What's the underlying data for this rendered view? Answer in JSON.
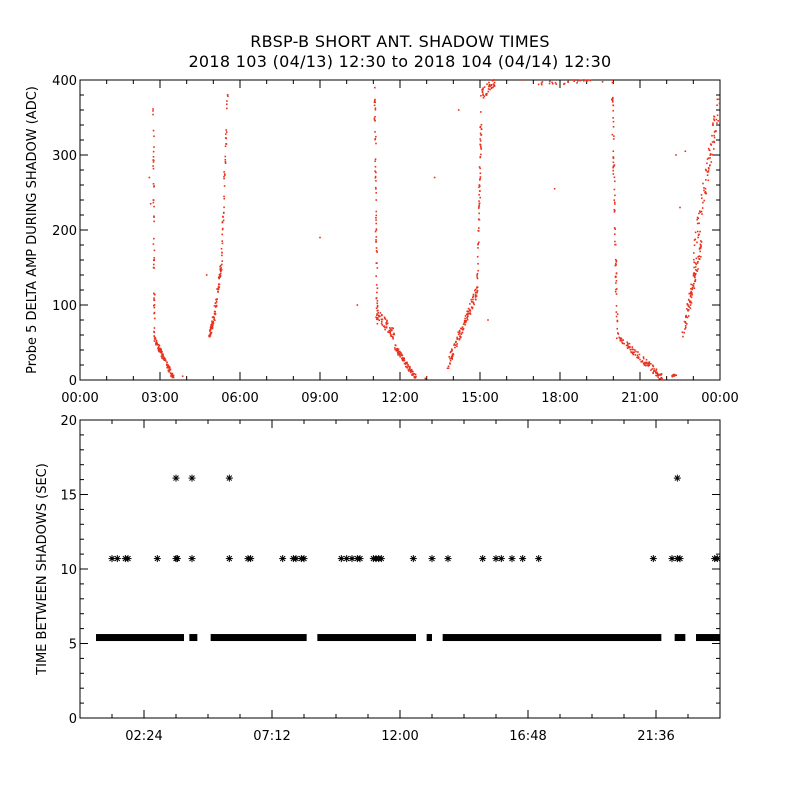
{
  "title": "RBSP-B SHORT ANT. SHADOW TIMES",
  "subtitle": "2018 103 (04/13) 12:30 to 2018 104 (04/14) 12:30",
  "colors": {
    "upper_points": "#e8321e",
    "lower_points": "#000000",
    "axes": "#000000"
  },
  "chart_data": [
    {
      "type": "scatter",
      "ylabel": "Probe 5 DELTA AMP DURING SHADOW (ADC)",
      "xlabel": "",
      "xlim": [
        0,
        24
      ],
      "ylim": [
        0,
        400
      ],
      "x_ticks": [
        0,
        3,
        6,
        9,
        12,
        15,
        18,
        21,
        24
      ],
      "x_tick_labels": [
        "00:00",
        "03:00",
        "06:00",
        "09:00",
        "12:00",
        "15:00",
        "18:00",
        "21:00",
        "00:00"
      ],
      "y_ticks": [
        0,
        100,
        200,
        300,
        400
      ],
      "y_tick_labels": [
        "0",
        "100",
        "200",
        "300",
        "400"
      ],
      "series": [
        {
          "segments": [
            {
              "x0": 2.75,
              "x1": 2.79,
              "y0": 360,
              "y1": 50,
              "n": 50,
              "spread": 20
            },
            {
              "x0": 2.8,
              "x1": 3.5,
              "y0": 55,
              "y1": 3,
              "n": 90,
              "spread": 8
            },
            {
              "x0": 4.85,
              "x1": 5.0,
              "y0": 60,
              "y1": 80,
              "n": 40,
              "spread": 12
            },
            {
              "x0": 5.0,
              "x1": 5.3,
              "y0": 75,
              "y1": 150,
              "n": 50,
              "spread": 15
            },
            {
              "x0": 5.3,
              "x1": 5.55,
              "y0": 150,
              "y1": 395,
              "n": 45,
              "spread": 12
            },
            {
              "x0": 11.05,
              "x1": 11.15,
              "y0": 390,
              "y1": 70,
              "n": 60,
              "spread": 20
            },
            {
              "x0": 11.1,
              "x1": 11.8,
              "y0": 90,
              "y1": 60,
              "n": 60,
              "spread": 15
            },
            {
              "x0": 11.8,
              "x1": 12.6,
              "y0": 45,
              "y1": 2,
              "n": 80,
              "spread": 8
            },
            {
              "x0": 13.8,
              "x1": 14.9,
              "y0": 20,
              "y1": 120,
              "n": 110,
              "spread": 15
            },
            {
              "x0": 14.9,
              "x1": 15.05,
              "y0": 120,
              "y1": 360,
              "n": 60,
              "spread": 30
            },
            {
              "x0": 15.05,
              "x1": 15.6,
              "y0": 380,
              "y1": 400,
              "n": 40,
              "spread": 15
            },
            {
              "x0": 17.2,
              "x1": 19.6,
              "y0": 395,
              "y1": 400,
              "n": 30,
              "spread": 5
            },
            {
              "x0": 19.95,
              "x1": 20.15,
              "y0": 400,
              "y1": 60,
              "n": 70,
              "spread": 25
            },
            {
              "x0": 20.1,
              "x1": 21.85,
              "y0": 60,
              "y1": 2,
              "n": 110,
              "spread": 10
            },
            {
              "x0": 22.6,
              "x1": 23.3,
              "y0": 60,
              "y1": 180,
              "n": 90,
              "spread": 20
            },
            {
              "x0": 23.0,
              "x1": 24.0,
              "y0": 160,
              "y1": 380,
              "n": 90,
              "spread": 40
            },
            {
              "x0": 22.2,
              "x1": 22.35,
              "y0": 5,
              "y1": 8,
              "n": 10,
              "spread": 4
            }
          ],
          "points": [
            [
              3.85,
              5
            ],
            [
              2.65,
              235
            ],
            [
              4.75,
              140
            ],
            [
              9.0,
              190
            ],
            [
              14.2,
              360
            ],
            [
              12.95,
              2
            ],
            [
              13.0,
              4
            ],
            [
              15.3,
              80
            ],
            [
              16.6,
              400
            ],
            [
              17.8,
              255
            ],
            [
              22.35,
              300
            ],
            [
              22.7,
              305
            ],
            [
              22.5,
              230
            ],
            [
              2.6,
              270
            ],
            [
              10.4,
              100
            ],
            [
              13.3,
              270
            ]
          ]
        }
      ]
    },
    {
      "type": "scatter",
      "ylabel": "TIME BETWEEN SHADOWS (SEC)",
      "xlabel": "",
      "xlim": [
        0,
        24
      ],
      "ylim": [
        0,
        20
      ],
      "x_ticks": [
        2.4,
        7.2,
        12.0,
        16.8,
        21.6
      ],
      "x_tick_labels": [
        "02:24",
        "07:12",
        "12:00",
        "16:48",
        "21:36"
      ],
      "y_ticks": [
        0,
        5,
        10,
        15,
        20
      ],
      "y_tick_labels": [
        "0",
        "5",
        "10",
        "15",
        "20"
      ],
      "series": [
        {
          "marker": "asterisk",
          "bands": [
            {
              "y": 5.4,
              "ranges": [
                [
                  0.6,
                  3.9
                ],
                [
                  4.1,
                  4.4
                ],
                [
                  4.9,
                  8.5
                ],
                [
                  8.9,
                  12.6
                ],
                [
                  13.0,
                  13.2
                ],
                [
                  13.6,
                  21.8
                ],
                [
                  22.3,
                  22.7
                ],
                [
                  23.1,
                  24.0
                ]
              ]
            }
          ],
          "points": [
            [
              1.2,
              10.7
            ],
            [
              1.4,
              10.7
            ],
            [
              1.7,
              10.7
            ],
            [
              1.8,
              10.7
            ],
            [
              2.9,
              10.7
            ],
            [
              3.6,
              10.7
            ],
            [
              3.65,
              10.7
            ],
            [
              4.2,
              10.7
            ],
            [
              5.6,
              10.7
            ],
            [
              6.3,
              10.7
            ],
            [
              6.4,
              10.7
            ],
            [
              7.6,
              10.7
            ],
            [
              8.0,
              10.7
            ],
            [
              8.1,
              10.7
            ],
            [
              8.3,
              10.7
            ],
            [
              8.4,
              10.7
            ],
            [
              9.8,
              10.7
            ],
            [
              10.0,
              10.7
            ],
            [
              10.2,
              10.7
            ],
            [
              10.4,
              10.7
            ],
            [
              10.5,
              10.7
            ],
            [
              11.0,
              10.7
            ],
            [
              11.1,
              10.7
            ],
            [
              11.2,
              10.7
            ],
            [
              11.3,
              10.7
            ],
            [
              12.5,
              10.7
            ],
            [
              13.2,
              10.7
            ],
            [
              13.8,
              10.7
            ],
            [
              15.1,
              10.7
            ],
            [
              15.6,
              10.7
            ],
            [
              15.8,
              10.7
            ],
            [
              16.2,
              10.7
            ],
            [
              16.6,
              10.7
            ],
            [
              17.2,
              10.7
            ],
            [
              21.5,
              10.7
            ],
            [
              22.2,
              10.7
            ],
            [
              22.4,
              10.7
            ],
            [
              22.5,
              10.7
            ],
            [
              23.8,
              10.7
            ],
            [
              23.9,
              10.7
            ],
            [
              3.6,
              16.1
            ],
            [
              4.2,
              16.1
            ],
            [
              5.6,
              16.1
            ],
            [
              22.4,
              16.1
            ]
          ]
        }
      ]
    }
  ]
}
